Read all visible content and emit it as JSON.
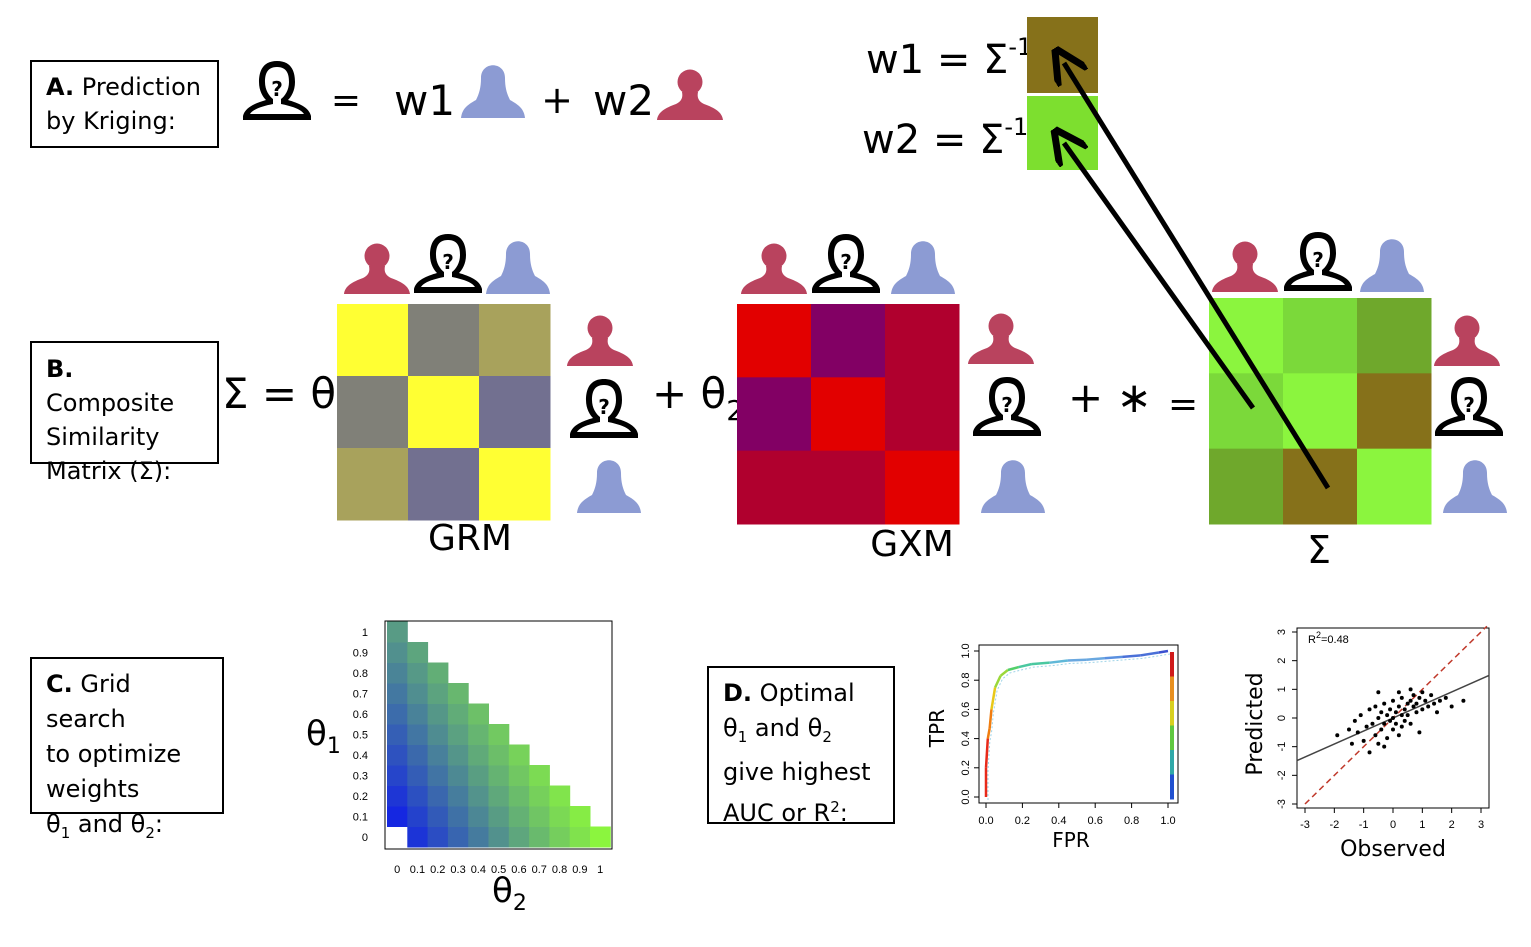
{
  "panels": {
    "a": {
      "letter": "A.",
      "line1": " Prediction",
      "line2": "by Kriging:"
    },
    "b": {
      "letter": "B.",
      "line1": " Composite",
      "line2": "Similarity",
      "line3": "Matrix (Σ):"
    },
    "c": {
      "letter": "C.",
      "line1": " Grid search",
      "line2": "to optimize",
      "line3": "weights",
      "line4_a": "θ",
      "line4_sub1": "1",
      "line4_b": " and θ",
      "line4_sub2": "2",
      "line4_c": ":"
    },
    "d": {
      "letter": "D.",
      "line1": " Optimal",
      "line2_a": "θ",
      "line2_sub1": "1",
      "line2_b": " and θ",
      "line2_sub2": "2",
      "line3": "give highest",
      "line4_a": "AUC or R",
      "line4_sup": "2",
      "line4_b": ":"
    }
  },
  "kriging": {
    "equals": "=",
    "w1": "w1",
    "plus": "+",
    "w2": "w2"
  },
  "weights": {
    "w1_label": "w1 = Σ",
    "w2_label": "w2 = Σ",
    "inverse_sup": "-1",
    "w1_color": "#86711a",
    "w2_color": "#7ddf2f"
  },
  "equation": {
    "sigma_eq": "Σ = θ",
    "sub1": "1",
    "plus_theta": "+ θ",
    "sub2": "2",
    "plus_star": "+ ∗",
    "equals": "="
  },
  "matrices": {
    "grm": {
      "name": "GRM",
      "cells": [
        [
          "#ffff33",
          "#808078",
          "#a8a25c"
        ],
        [
          "#808078",
          "#ffff33",
          "#727090"
        ],
        [
          "#a8a25c",
          "#727090",
          "#ffff33"
        ]
      ]
    },
    "gxm": {
      "name": "GXM",
      "cells": [
        [
          "#e20000",
          "#820064",
          "#b0002e"
        ],
        [
          "#820064",
          "#e20000",
          "#b0002e"
        ],
        [
          "#b0002e",
          "#b0002e",
          "#e20000"
        ]
      ]
    },
    "sigma": {
      "name": "Σ",
      "cells": [
        [
          "#8bf53e",
          "#7bd93a",
          "#6fa82c"
        ],
        [
          "#7bd93a",
          "#8bf53e",
          "#86711a"
        ],
        [
          "#6fa82c",
          "#86711a",
          "#8bf53e"
        ]
      ]
    }
  },
  "colors": {
    "blue_person": "#8c9bd3",
    "red_person": "#b9435e",
    "unknown_person": "#000000"
  },
  "chart_data": [
    {
      "type": "heatmap",
      "title": "",
      "xlabel_a": "θ",
      "xlabel_sub": "2",
      "ylabel_a": "θ",
      "ylabel_sub": "1",
      "x_ticks": [
        "0",
        "0.1",
        "0.2",
        "0.3",
        "0.4",
        "0.5",
        "0.6",
        "0.7",
        "0.8",
        "0.9",
        "1"
      ],
      "y_ticks": [
        "0",
        "0.1",
        "0.2",
        "0.3",
        "0.4",
        "0.5",
        "0.6",
        "0.7",
        "0.8",
        "0.9",
        "1"
      ],
      "constraint": "θ1 + θ2 ≤ 1",
      "color_low": "#0a14f0",
      "color_high": "#8bf53e"
    },
    {
      "type": "line",
      "xlabel": "FPR",
      "ylabel": "TPR",
      "x_ticks": [
        "0.0",
        "0.2",
        "0.4",
        "0.6",
        "0.8",
        "1.0"
      ],
      "y_ticks": [
        "0.0",
        "0.2",
        "0.4",
        "0.6",
        "0.8",
        "1.0"
      ],
      "xlim": [
        0,
        1
      ],
      "ylim": [
        0,
        1
      ],
      "x": [
        0.0,
        0.0,
        0.01,
        0.02,
        0.03,
        0.05,
        0.08,
        0.12,
        0.18,
        0.25,
        0.35,
        0.45,
        0.55,
        0.65,
        0.75,
        0.85,
        0.95,
        1.0
      ],
      "y": [
        0.0,
        0.2,
        0.4,
        0.47,
        0.6,
        0.75,
        0.83,
        0.87,
        0.89,
        0.91,
        0.92,
        0.935,
        0.94,
        0.95,
        0.96,
        0.97,
        0.99,
        1.0
      ]
    },
    {
      "type": "scatter",
      "xlabel": "Observed",
      "ylabel": "Predicted",
      "annotation_a": "R",
      "annotation_sup": "2",
      "annotation_b": "=0.48",
      "x_ticks": [
        "-3",
        "-2",
        "-1",
        "0",
        "1",
        "2",
        "3"
      ],
      "y_ticks": [
        "-3",
        "-2",
        "-1",
        "0",
        "1",
        "2",
        "3"
      ],
      "xlim": [
        -3,
        3
      ],
      "ylim": [
        -3,
        3
      ],
      "fit_line": {
        "intercept": 0.0,
        "slope": 0.45
      },
      "identity_line": true,
      "x": [
        -1.9,
        -1.5,
        -1.4,
        -1.2,
        -1.1,
        -1.0,
        -0.9,
        -0.8,
        -0.8,
        -0.7,
        -0.6,
        -0.6,
        -0.5,
        -0.5,
        -0.4,
        -0.4,
        -0.3,
        -0.3,
        -0.2,
        -0.2,
        -0.1,
        -0.1,
        0.0,
        0.0,
        0.0,
        0.1,
        0.1,
        0.2,
        0.2,
        0.3,
        0.3,
        0.3,
        0.4,
        0.4,
        0.5,
        0.5,
        0.6,
        0.6,
        0.7,
        0.7,
        0.8,
        0.8,
        0.9,
        1.0,
        1.0,
        1.1,
        1.2,
        1.3,
        1.4,
        1.6,
        1.8,
        2.0,
        2.4,
        -0.5,
        0.2,
        0.6,
        -0.3,
        1.5,
        -1.3,
        0.9
      ],
      "y": [
        -0.6,
        -0.4,
        -0.9,
        -0.5,
        0.1,
        -0.8,
        -0.3,
        -1.2,
        0.3,
        -0.2,
        -0.6,
        0.4,
        0.0,
        -0.9,
        0.2,
        -0.4,
        0.5,
        -0.2,
        0.1,
        -0.7,
        0.3,
        -0.1,
        0.0,
        0.6,
        -0.4,
        0.2,
        -0.2,
        0.4,
        -0.6,
        0.1,
        0.7,
        -0.3,
        0.3,
        -0.1,
        0.5,
        0.1,
        0.6,
        -0.2,
        0.4,
        0.8,
        0.2,
        0.5,
        0.7,
        0.3,
        0.9,
        0.6,
        0.4,
        0.8,
        0.5,
        0.6,
        0.7,
        0.4,
        0.6,
        0.9,
        0.9,
        1.0,
        -1.0,
        0.2,
        -0.1,
        -0.5
      ]
    }
  ]
}
